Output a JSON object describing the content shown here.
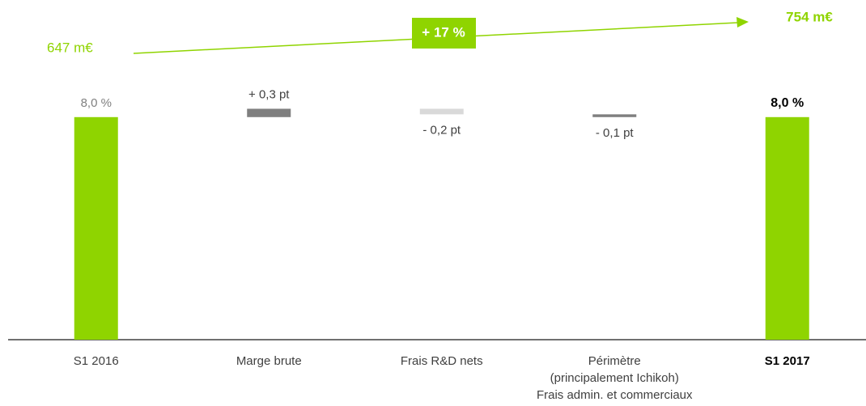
{
  "chart_data": {
    "type": "waterfall",
    "categories": [
      [
        "S1 2016"
      ],
      [
        "Marge brute"
      ],
      [
        "Frais R&D nets"
      ],
      [
        "Périmètre",
        "(principalement Ichikoh)",
        "Frais admin. et commerciaux"
      ],
      [
        "S1 2017"
      ]
    ],
    "values": [
      8.0,
      0.3,
      -0.2,
      -0.1,
      8.0
    ],
    "value_labels": [
      "8,0 %",
      "+ 0,3 pt",
      "- 0,2 pt",
      "- 0,1 pt",
      "8,0 %"
    ],
    "kinds": [
      "total",
      "delta",
      "delta",
      "delta",
      "total"
    ],
    "colors": [
      "#8fd400",
      "#7f7f7f",
      "#d9d9d9",
      "#7f7f7f",
      "#8fd400"
    ],
    "highlight_index": 4,
    "annotations": {
      "start": "647 m€",
      "end": "754 m€",
      "growth": "+ 17 %",
      "color": "#8fd400"
    }
  }
}
